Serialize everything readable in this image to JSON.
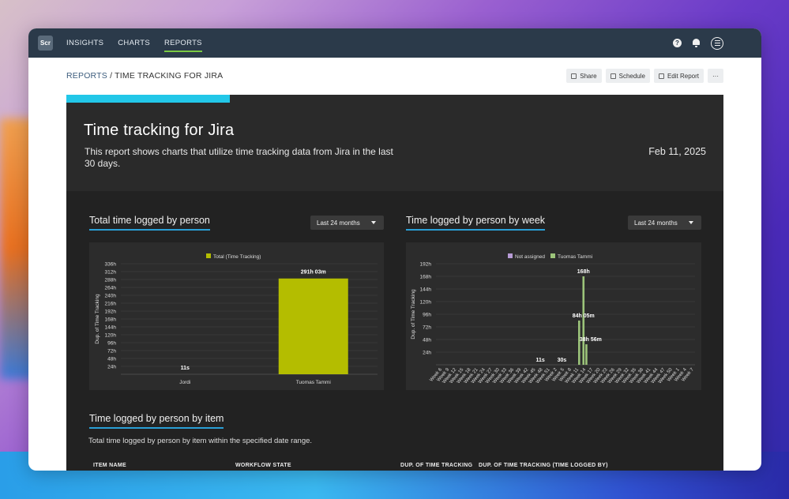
{
  "nav": {
    "logo": "Scr",
    "tabs": [
      {
        "label": "INSIGHTS"
      },
      {
        "label": "CHARTS"
      },
      {
        "label": "REPORTS"
      }
    ]
  },
  "breadcrumb": {
    "parent": "REPORTS",
    "separator": "/",
    "current": "TIME TRACKING FOR JIRA"
  },
  "actions": {
    "share": "Share",
    "schedule": "Schedule",
    "edit": "Edit Report",
    "more": "···"
  },
  "report": {
    "title": "Time tracking for Jira",
    "description": "This report shows charts that utilize time tracking data from Jira in the last 30 days.",
    "date": "Feb 11, 2025"
  },
  "sections": {
    "s1": {
      "title": "Total time logged by person",
      "range": "Last 24 months"
    },
    "s2": {
      "title": "Time logged by person by week",
      "range": "Last 24 months"
    },
    "s3": {
      "title": "Time logged by person by item",
      "subtitle": "Total time logged by person by item within the specified date range."
    }
  },
  "table": {
    "headers": [
      "ITEM NAME",
      "WORKFLOW STATE",
      "DUP. OF TIME TRACKING",
      "DUP. OF TIME TRACKING (TIME LOGGED BY)"
    ]
  },
  "chart_data": [
    {
      "type": "bar",
      "categories": [
        "Jordi",
        "Tuomas Tammi"
      ],
      "series": [
        {
          "name": "Total (Time Tracking)",
          "values": [
            0.003,
            291.05
          ],
          "color": "#b4bd00"
        }
      ],
      "data_labels": [
        "11s",
        "291h 03m"
      ],
      "ylabel": "Dup. of Time Tracking",
      "yticks": [
        "24h",
        "48h",
        "72h",
        "96h",
        "120h",
        "144h",
        "168h",
        "192h",
        "216h",
        "240h",
        "264h",
        "288h",
        "312h",
        "336h"
      ],
      "ylim": [
        0,
        336
      ],
      "grid": true,
      "legend": "top"
    },
    {
      "type": "bar",
      "categories": [
        "Week 6",
        "Week 9",
        "Week 12",
        "Week 15",
        "Week 18",
        "Week 21",
        "Week 24",
        "Week 27",
        "Week 30",
        "Week 33",
        "Week 36",
        "Week 39",
        "Week 42",
        "Week 45",
        "Week 48",
        "Week 51",
        "Week 2",
        "Week 5",
        "Week 8",
        "Week 11",
        "Week 14",
        "Week 17",
        "Week 20",
        "Week 23",
        "Week 26",
        "Week 29",
        "Week 32",
        "Week 35",
        "Week 38",
        "Week 41",
        "Week 44",
        "Week 47",
        "Week 50",
        "Week 1",
        "Week 4",
        "Week 7"
      ],
      "series": [
        {
          "name": "Not assigned",
          "color": "#b79bd6"
        },
        {
          "name": "Tuomas Tammi",
          "color": "#9cc47a"
        }
      ],
      "bars": [
        {
          "week": "Week 14",
          "index_offset": -0.6,
          "value": 84,
          "color": "#9cc47a"
        },
        {
          "week": "Week 14",
          "index_offset": 0,
          "value": 168,
          "color": "#9cc47a"
        },
        {
          "week": "Week 17",
          "index_offset": -0.6,
          "value": 38.9,
          "color": "#9cc47a"
        }
      ],
      "data_labels": [
        {
          "text": "11s",
          "week": "Week 48",
          "value": 0
        },
        {
          "text": "30s",
          "week": "Week 5",
          "value": 0
        },
        {
          "text": "84h 05m",
          "week": "Week 14",
          "value": 84
        },
        {
          "text": "168h",
          "week": "Week 14",
          "value": 168
        },
        {
          "text": "38h 56m",
          "week": "Week 17",
          "value": 38.9
        }
      ],
      "ylabel": "Dup. of Time Tracking",
      "yticks": [
        "24h",
        "48h",
        "72h",
        "96h",
        "120h",
        "144h",
        "168h",
        "192h"
      ],
      "ylim": [
        0,
        192
      ],
      "grid": true,
      "legend": "top"
    }
  ],
  "colors": {
    "accent": "#22c7e8",
    "topbar": "#2b3a4a",
    "underline": "#2a9fd6",
    "nav_active": "#7ac943"
  }
}
